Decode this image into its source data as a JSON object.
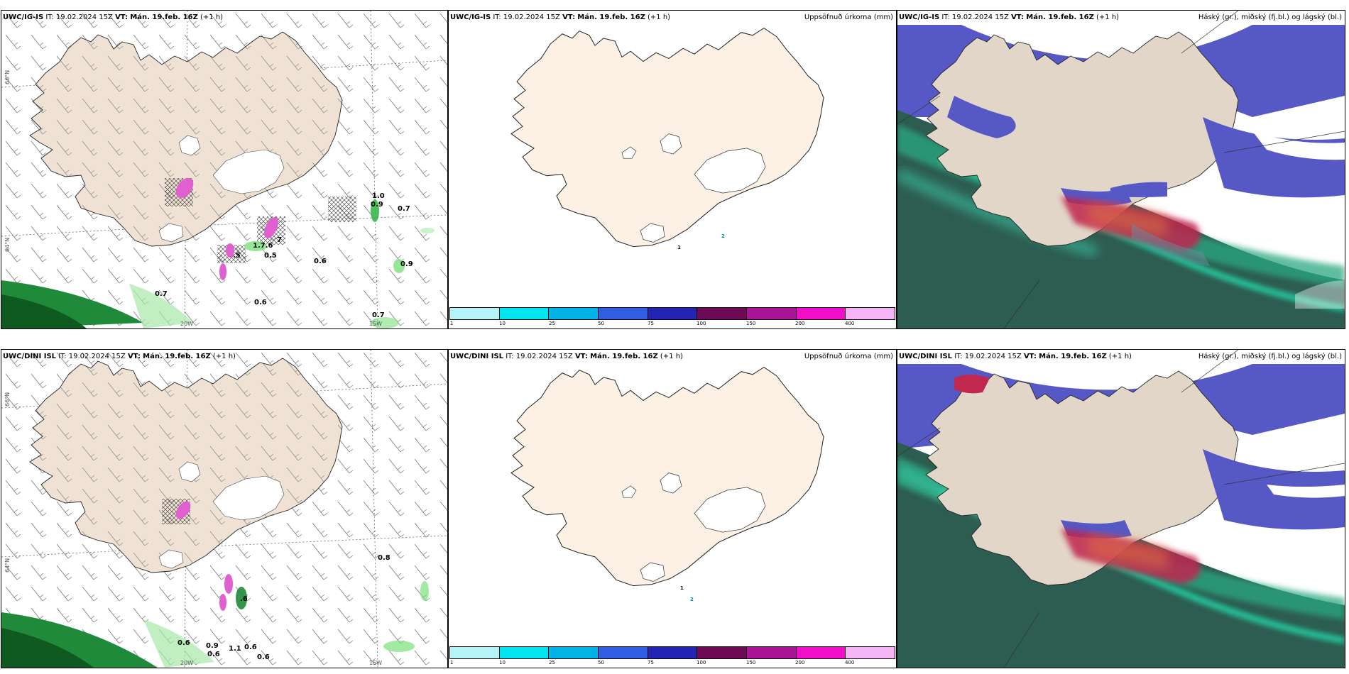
{
  "rows": [
    {
      "model": "UWC/IG-IS",
      "it_label": "IT:",
      "it_value": "19.02.2024 15Z",
      "vt_label": "VT:",
      "vt_value": "Mán. 19.feb. 16Z",
      "lead": "(+1 h)",
      "wind_values": [
        "1.0",
        "0.9",
        "0.7",
        "1.7.6",
        "0.5",
        ".5",
        "7",
        "0.6",
        "0.9",
        "0.7",
        "0.6",
        "0.7"
      ],
      "precip_values": [
        "1",
        "2"
      ]
    },
    {
      "model": "UWC/DINI ISL",
      "it_label": "IT:",
      "it_value": "19.02.2024 15Z",
      "vt_label": "VT:",
      "vt_value": "Mán. 19.feb. 16Z",
      "lead": "(+1 h)",
      "wind_values": [
        "0.8",
        "0.6",
        "0.9",
        "0.6",
        "1.1",
        "0.6",
        "0.6",
        ".6"
      ],
      "precip_values": [
        "1",
        "2"
      ]
    }
  ],
  "precip_title": "Uppsöfnuð úrkoma (mm)",
  "cloud_title": "Háský (gr.), miðský (fj.bl.) og lágský (bl.)",
  "grid_labels": {
    "lat66": "66°N",
    "lat64": "64°N",
    "lon20": "20W",
    "lon15": "15W"
  },
  "colorbar": {
    "colors": [
      "#b4f4f8",
      "#00e5f0",
      "#00b4e6",
      "#2f5fe0",
      "#2323b4",
      "#6e0a55",
      "#aa1496",
      "#f00fc8",
      "#f5b4f5"
    ],
    "ticks": [
      "1",
      "10",
      "25",
      "50",
      "75",
      "100",
      "150",
      "200",
      "400"
    ]
  },
  "colors": {
    "land": "#efe2d4",
    "land_precip": "#fdf1e6",
    "sea_dark": "#2d5c50",
    "teal": "#22d3a4",
    "high_cloud_blue": "#5658c6",
    "mid_cloud_red": "#c02850",
    "precip_green": "#7be07b",
    "snow_pink": "#e060d0"
  }
}
